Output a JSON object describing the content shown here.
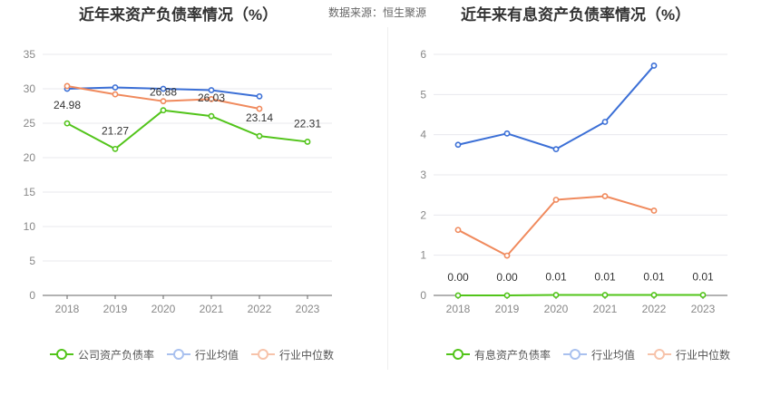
{
  "header": {
    "source_label": "数据来源：恒生聚源"
  },
  "chart_data": [
    {
      "type": "line",
      "title": "近年来资产负债率情况（%）",
      "categories": [
        "2018",
        "2019",
        "2020",
        "2021",
        "2022",
        "2023"
      ],
      "ylim": [
        0,
        35
      ],
      "yticks": [
        "0",
        "5",
        "10",
        "15",
        "20",
        "25",
        "30",
        "35"
      ],
      "grid": true,
      "legend_position": "bottom",
      "series": [
        {
          "name": "公司资产负债率",
          "color": "#52c41a",
          "values": [
            24.98,
            21.27,
            26.88,
            26.03,
            23.14,
            22.31
          ],
          "labels": [
            "24.98",
            "21.27",
            "26.88",
            "26.03",
            "23.14",
            "22.31"
          ]
        },
        {
          "name": "行业均值",
          "color": "#3b6fd6",
          "values": [
            30.0,
            30.2,
            30.0,
            29.8,
            28.9,
            null
          ]
        },
        {
          "name": "行业中位数",
          "color": "#f08a5d",
          "values": [
            30.4,
            29.2,
            28.2,
            28.5,
            27.1,
            null
          ]
        }
      ]
    },
    {
      "type": "line",
      "title": "近年来有息资产负债率情况（%）",
      "categories": [
        "2018",
        "2019",
        "2020",
        "2021",
        "2022",
        "2023"
      ],
      "ylim": [
        0,
        6
      ],
      "yticks": [
        "0",
        "1",
        "2",
        "3",
        "4",
        "5",
        "6"
      ],
      "grid": true,
      "legend_position": "bottom",
      "series": [
        {
          "name": "有息资产负债率",
          "color": "#52c41a",
          "values": [
            0.0,
            0.0,
            0.01,
            0.01,
            0.01,
            0.01
          ],
          "labels": [
            "0.00",
            "0.00",
            "0.01",
            "0.01",
            "0.01",
            "0.01"
          ]
        },
        {
          "name": "行业均值",
          "color": "#3b6fd6",
          "values": [
            3.75,
            4.03,
            3.64,
            4.32,
            5.72,
            null
          ]
        },
        {
          "name": "行业中位数",
          "color": "#f08a5d",
          "values": [
            1.63,
            0.99,
            2.38,
            2.47,
            2.11,
            null
          ]
        }
      ]
    }
  ]
}
